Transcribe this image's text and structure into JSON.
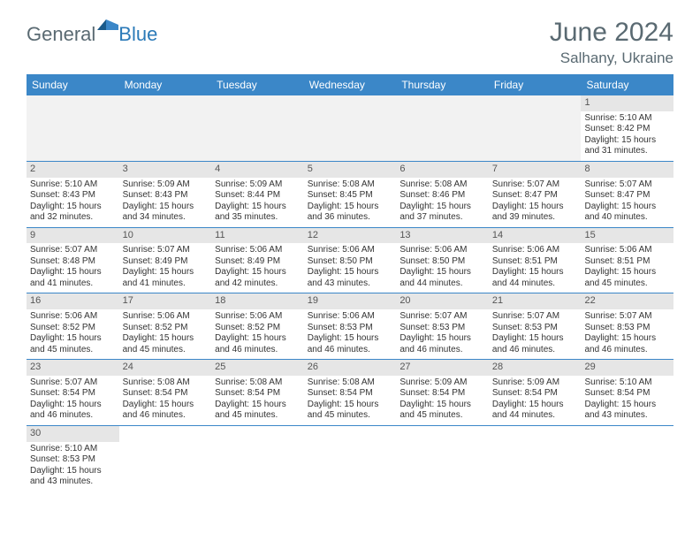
{
  "logo": {
    "general": "General",
    "blue": "Blue"
  },
  "title": "June 2024",
  "location": "Salhany, Ukraine",
  "colors": {
    "header_bg": "#3b87c8",
    "daynum_bg": "#e6e6e6",
    "empty_bg": "#f2f2f2",
    "text_gray": "#5a6a72",
    "brand_blue": "#2b7ab8"
  },
  "day_headers": [
    "Sunday",
    "Monday",
    "Tuesday",
    "Wednesday",
    "Thursday",
    "Friday",
    "Saturday"
  ],
  "weeks": [
    [
      null,
      null,
      null,
      null,
      null,
      null,
      {
        "n": "1",
        "sr": "Sunrise: 5:10 AM",
        "ss": "Sunset: 8:42 PM",
        "d1": "Daylight: 15 hours",
        "d2": "and 31 minutes."
      }
    ],
    [
      {
        "n": "2",
        "sr": "Sunrise: 5:10 AM",
        "ss": "Sunset: 8:43 PM",
        "d1": "Daylight: 15 hours",
        "d2": "and 32 minutes."
      },
      {
        "n": "3",
        "sr": "Sunrise: 5:09 AM",
        "ss": "Sunset: 8:43 PM",
        "d1": "Daylight: 15 hours",
        "d2": "and 34 minutes."
      },
      {
        "n": "4",
        "sr": "Sunrise: 5:09 AM",
        "ss": "Sunset: 8:44 PM",
        "d1": "Daylight: 15 hours",
        "d2": "and 35 minutes."
      },
      {
        "n": "5",
        "sr": "Sunrise: 5:08 AM",
        "ss": "Sunset: 8:45 PM",
        "d1": "Daylight: 15 hours",
        "d2": "and 36 minutes."
      },
      {
        "n": "6",
        "sr": "Sunrise: 5:08 AM",
        "ss": "Sunset: 8:46 PM",
        "d1": "Daylight: 15 hours",
        "d2": "and 37 minutes."
      },
      {
        "n": "7",
        "sr": "Sunrise: 5:07 AM",
        "ss": "Sunset: 8:47 PM",
        "d1": "Daylight: 15 hours",
        "d2": "and 39 minutes."
      },
      {
        "n": "8",
        "sr": "Sunrise: 5:07 AM",
        "ss": "Sunset: 8:47 PM",
        "d1": "Daylight: 15 hours",
        "d2": "and 40 minutes."
      }
    ],
    [
      {
        "n": "9",
        "sr": "Sunrise: 5:07 AM",
        "ss": "Sunset: 8:48 PM",
        "d1": "Daylight: 15 hours",
        "d2": "and 41 minutes."
      },
      {
        "n": "10",
        "sr": "Sunrise: 5:07 AM",
        "ss": "Sunset: 8:49 PM",
        "d1": "Daylight: 15 hours",
        "d2": "and 41 minutes."
      },
      {
        "n": "11",
        "sr": "Sunrise: 5:06 AM",
        "ss": "Sunset: 8:49 PM",
        "d1": "Daylight: 15 hours",
        "d2": "and 42 minutes."
      },
      {
        "n": "12",
        "sr": "Sunrise: 5:06 AM",
        "ss": "Sunset: 8:50 PM",
        "d1": "Daylight: 15 hours",
        "d2": "and 43 minutes."
      },
      {
        "n": "13",
        "sr": "Sunrise: 5:06 AM",
        "ss": "Sunset: 8:50 PM",
        "d1": "Daylight: 15 hours",
        "d2": "and 44 minutes."
      },
      {
        "n": "14",
        "sr": "Sunrise: 5:06 AM",
        "ss": "Sunset: 8:51 PM",
        "d1": "Daylight: 15 hours",
        "d2": "and 44 minutes."
      },
      {
        "n": "15",
        "sr": "Sunrise: 5:06 AM",
        "ss": "Sunset: 8:51 PM",
        "d1": "Daylight: 15 hours",
        "d2": "and 45 minutes."
      }
    ],
    [
      {
        "n": "16",
        "sr": "Sunrise: 5:06 AM",
        "ss": "Sunset: 8:52 PM",
        "d1": "Daylight: 15 hours",
        "d2": "and 45 minutes."
      },
      {
        "n": "17",
        "sr": "Sunrise: 5:06 AM",
        "ss": "Sunset: 8:52 PM",
        "d1": "Daylight: 15 hours",
        "d2": "and 45 minutes."
      },
      {
        "n": "18",
        "sr": "Sunrise: 5:06 AM",
        "ss": "Sunset: 8:52 PM",
        "d1": "Daylight: 15 hours",
        "d2": "and 46 minutes."
      },
      {
        "n": "19",
        "sr": "Sunrise: 5:06 AM",
        "ss": "Sunset: 8:53 PM",
        "d1": "Daylight: 15 hours",
        "d2": "and 46 minutes."
      },
      {
        "n": "20",
        "sr": "Sunrise: 5:07 AM",
        "ss": "Sunset: 8:53 PM",
        "d1": "Daylight: 15 hours",
        "d2": "and 46 minutes."
      },
      {
        "n": "21",
        "sr": "Sunrise: 5:07 AM",
        "ss": "Sunset: 8:53 PM",
        "d1": "Daylight: 15 hours",
        "d2": "and 46 minutes."
      },
      {
        "n": "22",
        "sr": "Sunrise: 5:07 AM",
        "ss": "Sunset: 8:53 PM",
        "d1": "Daylight: 15 hours",
        "d2": "and 46 minutes."
      }
    ],
    [
      {
        "n": "23",
        "sr": "Sunrise: 5:07 AM",
        "ss": "Sunset: 8:54 PM",
        "d1": "Daylight: 15 hours",
        "d2": "and 46 minutes."
      },
      {
        "n": "24",
        "sr": "Sunrise: 5:08 AM",
        "ss": "Sunset: 8:54 PM",
        "d1": "Daylight: 15 hours",
        "d2": "and 46 minutes."
      },
      {
        "n": "25",
        "sr": "Sunrise: 5:08 AM",
        "ss": "Sunset: 8:54 PM",
        "d1": "Daylight: 15 hours",
        "d2": "and 45 minutes."
      },
      {
        "n": "26",
        "sr": "Sunrise: 5:08 AM",
        "ss": "Sunset: 8:54 PM",
        "d1": "Daylight: 15 hours",
        "d2": "and 45 minutes."
      },
      {
        "n": "27",
        "sr": "Sunrise: 5:09 AM",
        "ss": "Sunset: 8:54 PM",
        "d1": "Daylight: 15 hours",
        "d2": "and 45 minutes."
      },
      {
        "n": "28",
        "sr": "Sunrise: 5:09 AM",
        "ss": "Sunset: 8:54 PM",
        "d1": "Daylight: 15 hours",
        "d2": "and 44 minutes."
      },
      {
        "n": "29",
        "sr": "Sunrise: 5:10 AM",
        "ss": "Sunset: 8:54 PM",
        "d1": "Daylight: 15 hours",
        "d2": "and 43 minutes."
      }
    ],
    [
      {
        "n": "30",
        "sr": "Sunrise: 5:10 AM",
        "ss": "Sunset: 8:53 PM",
        "d1": "Daylight: 15 hours",
        "d2": "and 43 minutes."
      },
      null,
      null,
      null,
      null,
      null,
      null
    ]
  ]
}
